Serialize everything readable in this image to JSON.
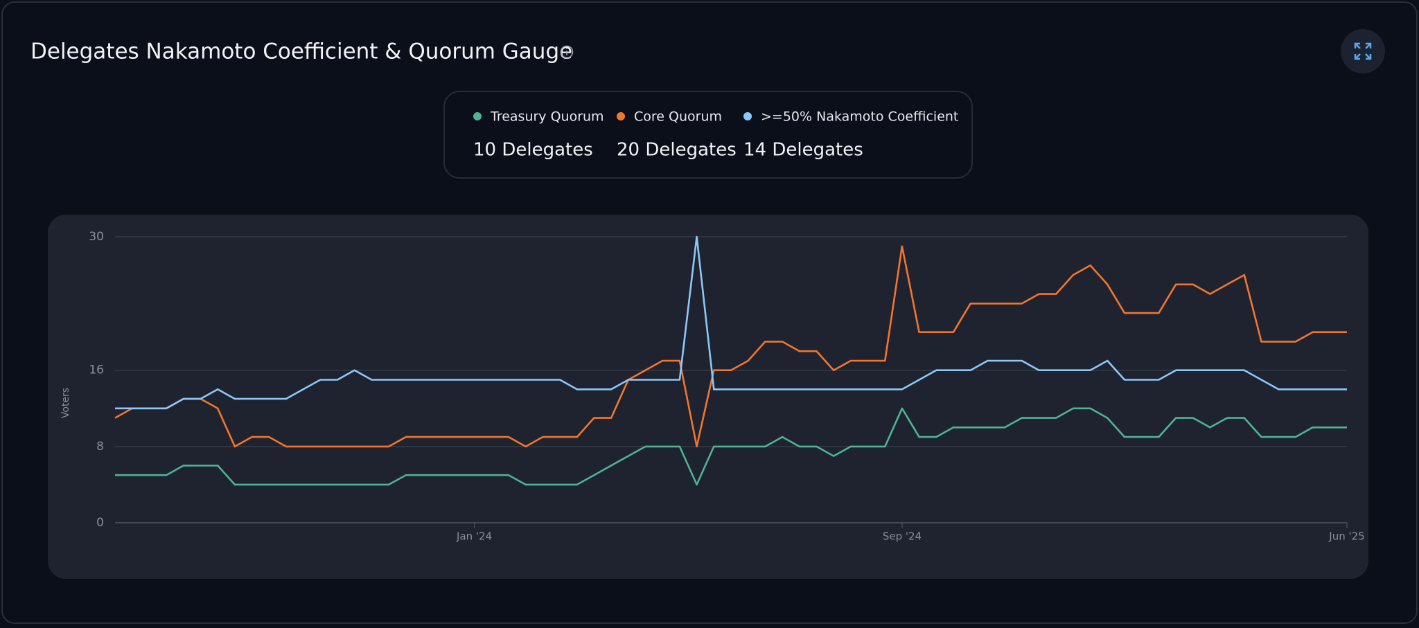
{
  "chart_data": {
    "type": "line",
    "title": "Delegates Nakamoto Coefficient & Quorum Gauge",
    "y_label": "Voters",
    "categories": [
      null,
      null,
      null,
      null,
      null,
      null,
      null,
      null,
      null,
      null,
      null,
      null,
      null,
      null,
      null,
      null,
      null,
      null,
      null,
      null,
      null,
      "Jan '24",
      null,
      null,
      null,
      null,
      null,
      null,
      null,
      null,
      null,
      null,
      null,
      null,
      null,
      null,
      null,
      null,
      null,
      null,
      null,
      null,
      null,
      null,
      null,
      null,
      "Sep '24",
      null,
      null,
      null,
      null,
      null,
      null,
      null,
      null,
      null,
      null,
      null,
      null,
      null,
      null,
      null,
      null,
      null,
      null,
      null,
      null,
      null,
      null,
      null,
      null,
      null,
      "Jun '25"
    ],
    "series": [
      {
        "name": "Treasury Quorum",
        "summary": "10 Delegates",
        "color": "#4fb394",
        "values": [
          5,
          5,
          5,
          5,
          6,
          6,
          6,
          4,
          4,
          4,
          4,
          4,
          4,
          4,
          4,
          4,
          4,
          5,
          5,
          5,
          5,
          5,
          5,
          5,
          4,
          4,
          4,
          4,
          5,
          6,
          7,
          8,
          8,
          8,
          4,
          8,
          8,
          8,
          8,
          9,
          8,
          8,
          7,
          8,
          8,
          8,
          12,
          9,
          9,
          10,
          10,
          10,
          10,
          11,
          11,
          11,
          12,
          12,
          11,
          9,
          9,
          9,
          11,
          11,
          10,
          11,
          11,
          9,
          9,
          9,
          10,
          10,
          10
        ]
      },
      {
        "name": "Core Quorum",
        "summary": "20 Delegates",
        "color": "#f2762e",
        "values": [
          11,
          12,
          12,
          12,
          13,
          13,
          12,
          8,
          9,
          9,
          8,
          8,
          8,
          8,
          8,
          8,
          8,
          9,
          9,
          9,
          9,
          9,
          9,
          9,
          8,
          9,
          9,
          9,
          11,
          11,
          15,
          16,
          17,
          17,
          8,
          16,
          16,
          17,
          19,
          19,
          18,
          18,
          16,
          17,
          17,
          17,
          29,
          20,
          20,
          20,
          23,
          23,
          23,
          23,
          24,
          24,
          26,
          27,
          25,
          22,
          22,
          22,
          25,
          25,
          24,
          25,
          26,
          19,
          19,
          19,
          20,
          20,
          20
        ]
      },
      {
        "name": ">=50% Nakamoto Coefficient",
        "summary": "14 Delegates",
        "color": "#8cc8f8",
        "values": [
          12,
          12,
          12,
          12,
          13,
          13,
          14,
          13,
          13,
          13,
          13,
          14,
          15,
          15,
          16,
          15,
          15,
          15,
          15,
          15,
          15,
          15,
          15,
          15,
          15,
          15,
          15,
          14,
          14,
          14,
          15,
          15,
          15,
          15,
          30,
          14,
          14,
          14,
          14,
          14,
          14,
          14,
          14,
          14,
          14,
          14,
          14,
          15,
          16,
          16,
          16,
          17,
          17,
          17,
          16,
          16,
          16,
          16,
          17,
          15,
          15,
          15,
          16,
          16,
          16,
          16,
          16,
          15,
          14,
          14,
          14,
          14,
          14
        ]
      }
    ],
    "ylim": [
      0,
      30
    ],
    "yticks": [
      0,
      8,
      16,
      30
    ],
    "grid": true
  }
}
